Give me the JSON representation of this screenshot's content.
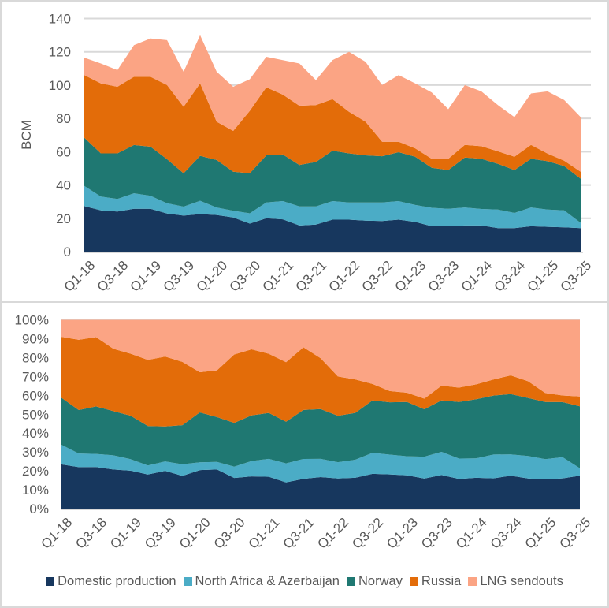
{
  "chart_data": [
    {
      "type": "area",
      "stacked": true,
      "title": "",
      "xlabel": "",
      "ylabel": "BCM",
      "ylim": [
        0,
        140
      ],
      "yticks": [
        0,
        20,
        40,
        60,
        80,
        100,
        120,
        140
      ],
      "grid": true,
      "categories": [
        "Q1-18",
        "Q2-18",
        "Q3-18",
        "Q4-18",
        "Q1-19",
        "Q2-19",
        "Q3-19",
        "Q4-19",
        "Q1-20",
        "Q2-20",
        "Q3-20",
        "Q4-20",
        "Q1-21",
        "Q2-21",
        "Q3-21",
        "Q4-21",
        "Q1-22",
        "Q2-22",
        "Q3-22",
        "Q4-22",
        "Q1-23",
        "Q2-23",
        "Q3-23",
        "Q4-23",
        "Q1-24",
        "Q2-24",
        "Q3-24",
        "Q4-24",
        "Q1-25",
        "Q2-25",
        "Q3-25"
      ],
      "tick_labels": [
        "Q1-18",
        "Q3-18",
        "Q1-19",
        "Q3-19",
        "Q1-20",
        "Q3-20",
        "Q1-21",
        "Q3-21",
        "Q1-22",
        "Q3-22",
        "Q1-23",
        "Q3-23",
        "Q1-24",
        "Q3-24",
        "Q1-25",
        "Q3-25"
      ],
      "series": [
        {
          "name": "Domestic production",
          "color": "#17375e",
          "values": [
            27.3,
            24.8,
            24.0,
            25.7,
            25.7,
            22.9,
            21.6,
            22.5,
            22.0,
            20.5,
            16.8,
            20.0,
            19.4,
            15.7,
            16.2,
            19.2,
            19.2,
            18.6,
            18.4,
            19.2,
            17.8,
            15.2,
            15.2,
            15.7,
            15.7,
            14.1,
            14.1,
            15.2,
            14.9,
            14.6,
            14.1
          ]
        },
        {
          "name": "North Africa & Azerbaijan",
          "color": "#4bacc6",
          "values": [
            12.1,
            8.2,
            7.6,
            9.3,
            7.8,
            6.1,
            5.4,
            8.0,
            4.5,
            4.0,
            6.2,
            9.5,
            10.9,
            11.4,
            10.9,
            11.1,
            10.3,
            10.9,
            11.1,
            11.1,
            10.2,
            11.1,
            10.5,
            10.8,
            9.9,
            11.1,
            9.1,
            11.3,
            10.3,
            10.2,
            3.2
          ]
        },
        {
          "name": "Norway",
          "color": "#1f7872",
          "values": [
            29.0,
            26.0,
            27.4,
            29.0,
            29.5,
            26.5,
            20.0,
            27.0,
            28.5,
            23.5,
            24.0,
            28.3,
            28.0,
            24.9,
            26.7,
            30.3,
            29.5,
            28.3,
            27.8,
            29.4,
            29.0,
            24.0,
            23.3,
            30.0,
            30.1,
            27.5,
            25.8,
            29.2,
            29.1,
            26.6,
            26.5
          ]
        },
        {
          "name": "Russia",
          "color": "#e36c09",
          "values": [
            37.6,
            42.0,
            40.0,
            41.0,
            42.0,
            44.5,
            40.0,
            43.5,
            23.0,
            24.5,
            37.5,
            40.9,
            36.0,
            35.6,
            34.2,
            31.0,
            25.0,
            20.2,
            8.7,
            6.3,
            5.0,
            5.4,
            6.7,
            7.6,
            7.6,
            7.5,
            8.0,
            8.4,
            4.6,
            3.2,
            4.2
          ]
        },
        {
          "name": "LNG sendouts",
          "color": "#fba484",
          "values": [
            10.5,
            12.0,
            10.0,
            19.0,
            23.0,
            27.0,
            21.0,
            29.0,
            30.0,
            26.5,
            19.0,
            18.3,
            20.7,
            25.4,
            15.0,
            23.4,
            36.0,
            36.0,
            34.0,
            40.0,
            39.0,
            39.9,
            29.8,
            35.9,
            32.9,
            27.8,
            23.8,
            30.9,
            37.3,
            36.5,
            32.8
          ]
        }
      ]
    },
    {
      "type": "area",
      "stacked": true,
      "percent": true,
      "title": "",
      "xlabel": "",
      "ylabel": "",
      "ylim": [
        0,
        100
      ],
      "yticks": [
        "0%",
        "10%",
        "20%",
        "30%",
        "40%",
        "50%",
        "60%",
        "70%",
        "80%",
        "90%",
        "100%"
      ],
      "grid": false,
      "source": "same series as above, normalized to 100%",
      "tick_labels": [
        "Q1-18",
        "Q3-18",
        "Q1-19",
        "Q3-19",
        "Q1-20",
        "Q3-20",
        "Q1-21",
        "Q3-21",
        "Q1-22",
        "Q3-22",
        "Q1-23",
        "Q3-23",
        "Q1-24",
        "Q3-24",
        "Q1-25",
        "Q3-25"
      ]
    }
  ],
  "legend": {
    "placement": "bottom",
    "items": [
      {
        "label": "Domestic production",
        "color": "#17375e"
      },
      {
        "label": "North Africa & Azerbaijan",
        "color": "#4bacc6"
      },
      {
        "label": "Norway",
        "color": "#1f7872"
      },
      {
        "label": "Russia",
        "color": "#e36c09"
      },
      {
        "label": "LNG sendouts",
        "color": "#fba484"
      }
    ]
  }
}
